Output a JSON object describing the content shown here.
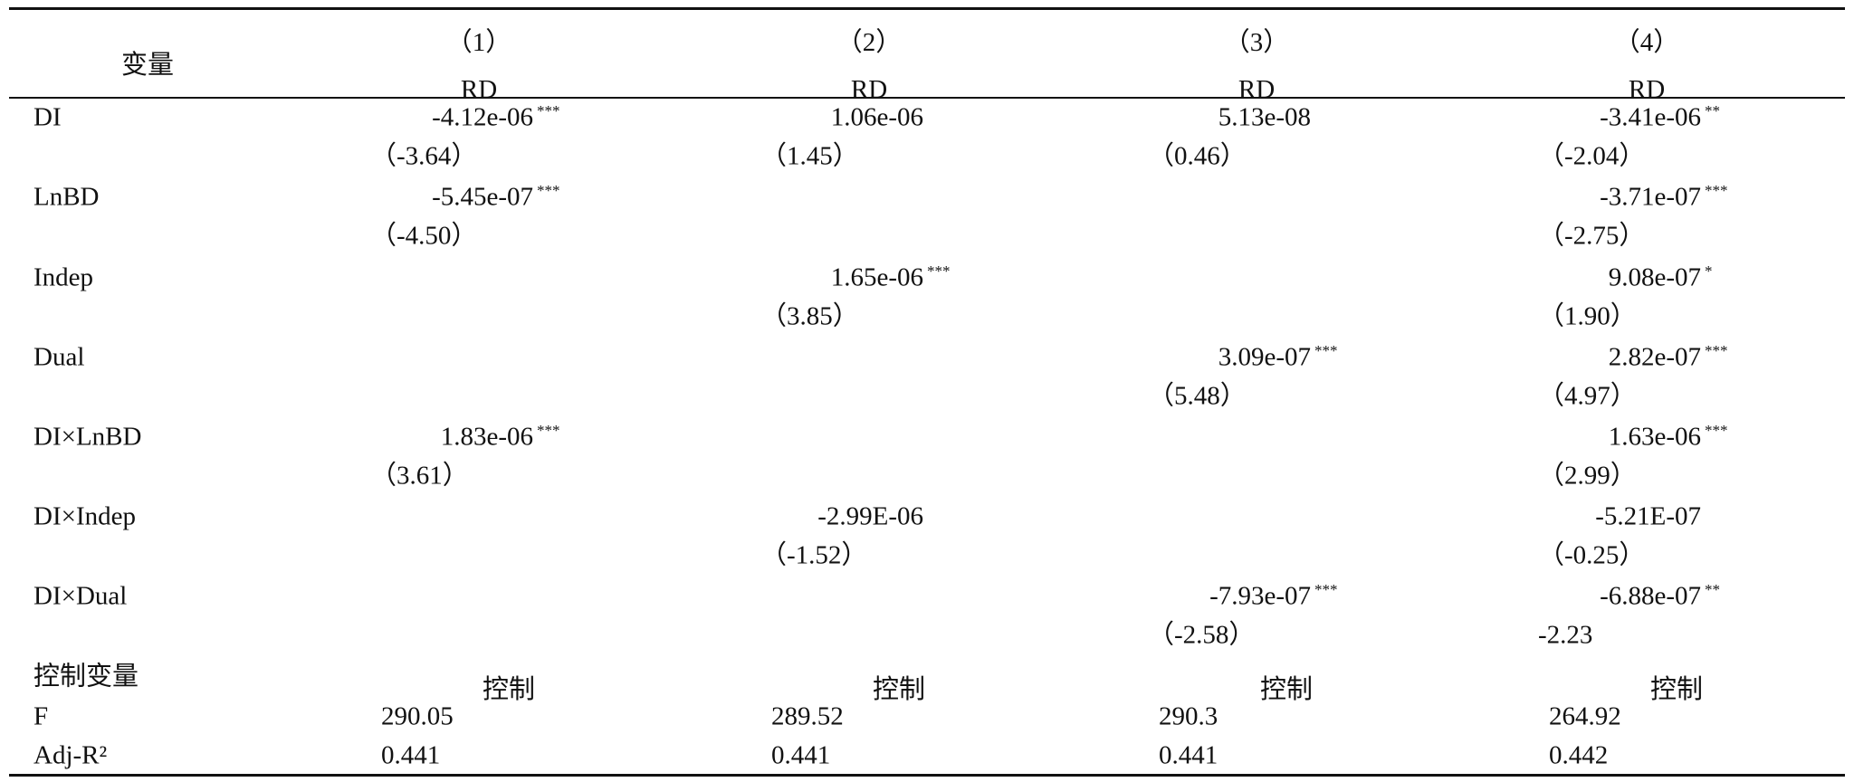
{
  "table": {
    "header": {
      "variable": "变量",
      "columns": [
        {
          "number": "（1）",
          "dependent": "RD"
        },
        {
          "number": "（2）",
          "dependent": "RD"
        },
        {
          "number": "（3）",
          "dependent": "RD"
        },
        {
          "number": "（4）",
          "dependent": "RD"
        }
      ]
    },
    "rows": [
      {
        "name": "DI",
        "cells": [
          {
            "coef": "-4.12e-06",
            "stars": "***",
            "t": "（-3.64）"
          },
          {
            "coef": "1.06e-06",
            "t": "（1.45）"
          },
          {
            "coef": "5.13e-08",
            "t": "（0.46）"
          },
          {
            "coef": "-3.41e-06",
            "stars": "**",
            "t": "（-2.04）"
          }
        ]
      },
      {
        "name": "LnBD",
        "cells": [
          {
            "coef": "-5.45e-07",
            "stars": "***",
            "t": "（-4.50）"
          },
          null,
          null,
          {
            "coef": "-3.71e-07",
            "stars": "***",
            "t": "（-2.75）"
          }
        ]
      },
      {
        "name": "Indep",
        "cells": [
          null,
          {
            "coef": "1.65e-06",
            "stars": "***",
            "t": "（3.85）"
          },
          null,
          {
            "coef": "9.08e-07",
            "stars": "*",
            "t": "（1.90）"
          }
        ]
      },
      {
        "name": "Dual",
        "cells": [
          null,
          null,
          {
            "coef": "3.09e-07",
            "stars": "***",
            "t": "（5.48）"
          },
          {
            "coef": "2.82e-07",
            "stars": "***",
            "t": "（4.97）"
          }
        ]
      },
      {
        "name": "DI×LnBD",
        "cells": [
          {
            "coef": "1.83e-06",
            "stars": "***",
            "t": "（3.61）"
          },
          null,
          null,
          {
            "coef": "1.63e-06",
            "stars": "***",
            "t": "（2.99）"
          }
        ]
      },
      {
        "name": "DI×Indep",
        "cells": [
          null,
          {
            "coef": "-2.99E-06",
            "t": "（-1.52）"
          },
          null,
          {
            "coef": "-5.21E-07",
            "t": "（-0.25）"
          }
        ]
      },
      {
        "name": "DI×Dual",
        "cells": [
          null,
          null,
          {
            "coef": "-7.93e-07",
            "stars": "***",
            "t": "（-2.58）"
          },
          {
            "coef": "-6.88e-07",
            "stars": "**",
            "t": "-2.23"
          }
        ]
      }
    ],
    "summary_rows": [
      {
        "name": "控制变量",
        "values": [
          "控制",
          "控制",
          "控制",
          "控制"
        ]
      },
      {
        "name": "F",
        "values": [
          "290.05",
          "289.52",
          "290.3",
          "264.92"
        ]
      },
      {
        "name": "Adj-R²",
        "values": [
          "0.441",
          "0.441",
          "0.441",
          "0.442"
        ]
      }
    ]
  }
}
